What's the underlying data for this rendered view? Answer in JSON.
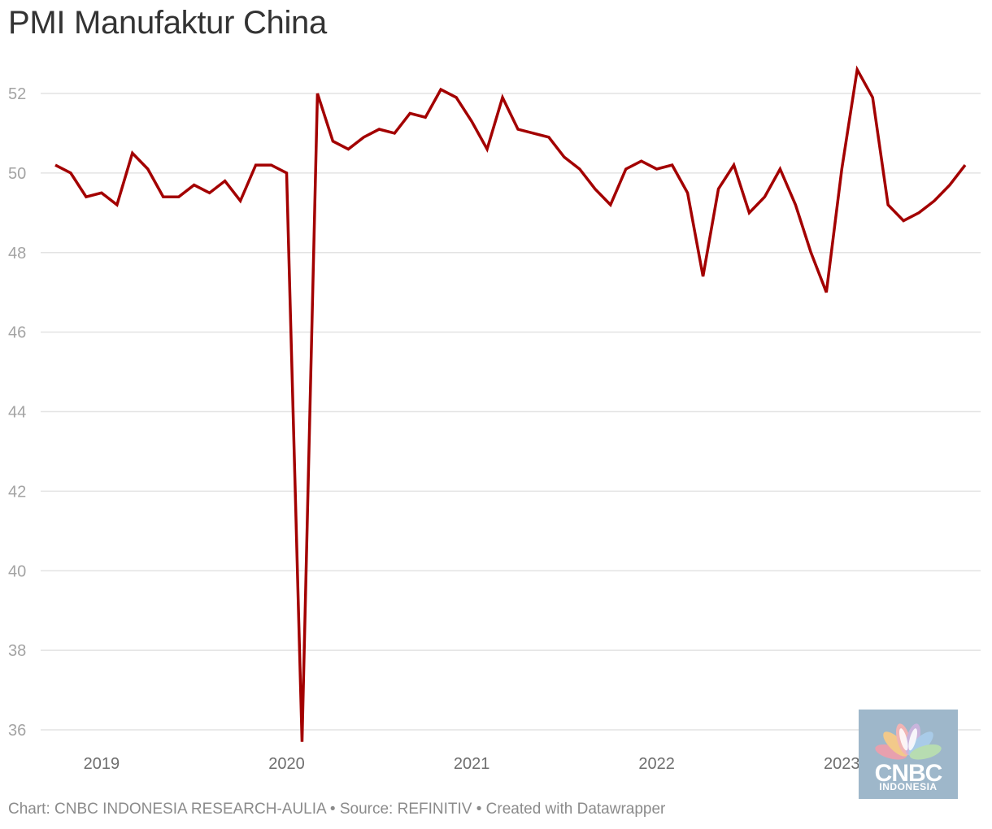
{
  "title": "PMI Manufaktur China",
  "footer": "Chart: CNBC INDONESIA RESEARCH-AULIA • Source: REFINITIV • Created with Datawrapper",
  "logo": {
    "main": "CNBC",
    "sub": "INDONESIA"
  },
  "colors": {
    "line": "#a30000",
    "grid": "#e3e3e3",
    "logo_bg": "#9eb7ca"
  },
  "chart_data": {
    "type": "line",
    "title": "PMI Manufaktur China",
    "xlabel": "",
    "ylabel": "",
    "ylim": [
      36,
      52
    ],
    "yticks": [
      36,
      38,
      40,
      42,
      44,
      46,
      48,
      50,
      52
    ],
    "xticks": [
      "2019",
      "2020",
      "2021",
      "2022",
      "2023"
    ],
    "grid": true,
    "x": [
      "2018-10",
      "2018-11",
      "2018-12",
      "2019-01",
      "2019-02",
      "2019-03",
      "2019-04",
      "2019-05",
      "2019-06",
      "2019-07",
      "2019-08",
      "2019-09",
      "2019-10",
      "2019-11",
      "2019-12",
      "2020-01",
      "2020-02",
      "2020-03",
      "2020-04",
      "2020-05",
      "2020-06",
      "2020-07",
      "2020-08",
      "2020-09",
      "2020-10",
      "2020-11",
      "2020-12",
      "2021-01",
      "2021-02",
      "2021-03",
      "2021-04",
      "2021-05",
      "2021-06",
      "2021-07",
      "2021-08",
      "2021-09",
      "2021-10",
      "2021-11",
      "2021-12",
      "2022-01",
      "2022-02",
      "2022-03",
      "2022-04",
      "2022-05",
      "2022-06",
      "2022-07",
      "2022-08",
      "2022-09",
      "2022-10",
      "2022-11",
      "2022-12",
      "2023-01",
      "2023-02",
      "2023-03",
      "2023-04",
      "2023-05",
      "2023-06",
      "2023-07",
      "2023-08",
      "2023-09"
    ],
    "series": [
      {
        "values": [
          50.2,
          50.0,
          49.4,
          49.5,
          49.2,
          50.5,
          50.1,
          49.4,
          49.4,
          49.7,
          49.5,
          49.8,
          49.3,
          50.2,
          50.2,
          50.0,
          35.7,
          52.0,
          50.8,
          50.6,
          50.9,
          51.1,
          51.0,
          51.5,
          51.4,
          52.1,
          51.9,
          51.3,
          50.6,
          51.9,
          51.1,
          51.0,
          50.9,
          50.4,
          50.1,
          49.6,
          49.2,
          50.1,
          50.3,
          50.1,
          50.2,
          49.5,
          47.4,
          49.6,
          50.2,
          49.0,
          49.4,
          50.1,
          49.2,
          48.0,
          47.0,
          50.1,
          52.6,
          51.9,
          49.2,
          48.8,
          49.0,
          49.3,
          49.7,
          50.2
        ]
      }
    ]
  }
}
